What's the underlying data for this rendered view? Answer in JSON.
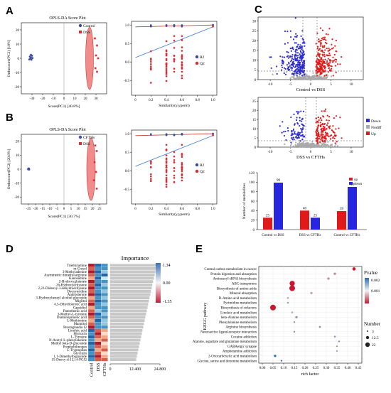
{
  "panel_labels": {
    "a": "A",
    "b": "B",
    "c": "C",
    "d": "D",
    "e": "E"
  },
  "chart_data": [
    {
      "id": "A1",
      "type": "scatter",
      "title": "OPLS-DA Score Plot",
      "xlabel": "Score(PC1) [40.8%]",
      "ylabel": "Orthoscore(PC2) [10%]",
      "xticks": [
        "-30",
        "-20",
        "-10",
        "0",
        "10",
        "20",
        "30"
      ],
      "yticks": [
        "-20",
        "-10",
        "0",
        "10",
        "20"
      ],
      "legend": [
        "Control",
        "DSS"
      ],
      "colors": [
        "#3b4ba0",
        "#e02b33"
      ],
      "series": [
        {
          "name": "Control",
          "points": [
            [
              -32,
              1.2
            ],
            [
              -31,
              0.5
            ],
            [
              -30,
              1.8
            ],
            [
              -31.5,
              -0.3
            ],
            [
              -30.5,
              -1
            ],
            [
              -29.5,
              0.2
            ],
            [
              -32.5,
              -0.8
            ],
            [
              -31,
              2.4
            ]
          ]
        },
        {
          "name": "DSS",
          "points": [
            [
              29,
              14
            ],
            [
              31,
              9
            ],
            [
              30,
              2
            ],
            [
              32,
              0
            ],
            [
              29.5,
              -7
            ],
            [
              31,
              -9.5
            ]
          ]
        }
      ]
    },
    {
      "id": "A2",
      "type": "scatter",
      "xlabel": "Similarity(y,yperm)",
      "yticks": [
        "-0.5",
        "0.0",
        "0.5",
        "1.0"
      ],
      "xticks": [
        "0",
        "0.2",
        "0.4",
        "0.6",
        "0.8",
        "1.0"
      ],
      "legend": [
        "R2",
        "Q2"
      ]
    },
    {
      "id": "B1",
      "type": "scatter",
      "title": "OPLS-DA Score Plot",
      "xlabel": "Score(PC1) [30.7%]",
      "ylabel": "Orthoscore(PC2) [20.8%]",
      "xticks": [
        "-25",
        "-20",
        "-15",
        "-10",
        "-5",
        "0",
        "5",
        "10",
        "15",
        "20",
        "25"
      ],
      "yticks": [
        "-20",
        "-10",
        "0",
        "10",
        "20"
      ],
      "legend": [
        "CFTHs",
        "DSS"
      ],
      "colors": [
        "#3b4ba0",
        "#e02b33"
      ],
      "series": [
        {
          "name": "CFTHs",
          "points": [
            [
              -25,
              0.5
            ],
            [
              -24.5,
              -0.3
            ],
            [
              -24.8,
              0.2
            ],
            [
              -25.2,
              -0.1
            ],
            [
              -24.6,
              0.4
            ]
          ]
        },
        {
          "name": "DSS",
          "points": [
            [
              22,
              17
            ],
            [
              23,
              13
            ],
            [
              21.5,
              5
            ],
            [
              22.5,
              -2
            ],
            [
              21,
              -8
            ],
            [
              23,
              -14
            ]
          ]
        }
      ]
    },
    {
      "id": "B2",
      "type": "scatter",
      "xlabel": "Similarity(y,yperm)",
      "yticks": [
        "-0.5",
        "0.0",
        "0.5",
        "1.0"
      ],
      "xticks": [
        "0",
        "0.2",
        "0.4",
        "0.6",
        "0.8",
        "1.0"
      ],
      "legend": [
        "R2",
        "Q2"
      ]
    },
    {
      "id": "C1",
      "type": "scatter",
      "xlabel": "Control vs DSS",
      "xticks": [
        "-10",
        "-5",
        "0",
        "5",
        "10"
      ],
      "yticks": [
        "0",
        "5",
        "10",
        "15",
        "20",
        "25",
        "30"
      ]
    },
    {
      "id": "C2",
      "type": "scatter",
      "xlabel": "DSS vs CFTHs",
      "xticks": [
        "-10",
        "-5",
        "0",
        "5",
        "10"
      ],
      "yticks": [
        "0",
        "5",
        "10",
        "15",
        "20",
        "25"
      ],
      "legend": [
        "Down",
        "Nodiff",
        "Up"
      ],
      "colors": [
        "#2c2cd0",
        "#aaaaaa",
        "#e01a1a"
      ]
    },
    {
      "id": "C3",
      "type": "bar",
      "ylabel": "Number of metabolites",
      "categories": [
        "Control vs DSS",
        "DSS vs CFTHs",
        "Control vs CFTHs"
      ],
      "yticks": [
        "0",
        "20",
        "40",
        "60",
        "80",
        "100",
        "120"
      ],
      "ylim": [
        0,
        120
      ],
      "legend": [
        "up",
        "down"
      ],
      "colors": [
        "#e01a1a",
        "#2626e0"
      ],
      "series": [
        {
          "name": "up",
          "values": [
            25,
            40,
            39
          ]
        },
        {
          "name": "down",
          "values": [
            99,
            25,
            90
          ]
        }
      ],
      "value_labels": {
        "up": [
          "25",
          "40",
          "39"
        ],
        "down": [
          "99",
          "25",
          "90"
        ]
      }
    },
    {
      "id": "D",
      "type": "heatmap",
      "title": "Importance",
      "rows": [
        "Triethylamine",
        "m-Cresol",
        "3-Methyladenine",
        "Asymmetric dimethylarginine",
        "Kanosamine",
        "2-Hydroxyglutarate",
        "26-Hydroxyecdysone",
        "2,22-Dideoxy-3-dehydroecdysone",
        "Deoxyuridine",
        "Androsterone",
        "3-Hydroxybenzyl alcohol glucoside",
        "Miglitol",
        "4,5-Dihydroorotic acid",
        "Capsidiol",
        "Pantothenic acid",
        "3-Methyl-L-tyrosine",
        "Diaminopimelic acid",
        "L-Methionine",
        "Mannitol",
        "Prostaglandin I2",
        "Linoleic acid",
        "Myriocin",
        "L-Tyrosine",
        "N-Acetyl-L-phenylalanine",
        "Methyl beta-D-glucoside",
        "Porphobilinogen",
        "L-Tryptophan",
        "Glycitein",
        "1,1-Dimethylbiguanide",
        "15-Deoxy-d-12,14-PGJ2"
      ],
      "columns": [
        "Control",
        "DSS",
        "CFTHs"
      ],
      "importance_ticks": [
        "0",
        "12.400",
        "24.800"
      ],
      "colorbar_ticks": [
        "1.34",
        "0.00",
        "-1.35"
      ],
      "importance": [
        23.5,
        22.8,
        22.4,
        22.1,
        21.7,
        21.3,
        20.9,
        20.6,
        20.2,
        19.9,
        19.5,
        19.2,
        18.8,
        18.5,
        18.1,
        17.8,
        17.4,
        17.1,
        16.7,
        16.4,
        16.0,
        15.7,
        15.3,
        15.0,
        14.6,
        14.3,
        13.9,
        13.6,
        13.2,
        12.9
      ]
    },
    {
      "id": "E",
      "type": "scatter",
      "xlabel": "rich factor",
      "ylabel": "KEGG pathway",
      "xticks": [
        "0.00",
        "0.05",
        "0.10",
        "0.15",
        "0.20",
        "0.25",
        "0.30",
        "0.35",
        "0.40",
        "0.45"
      ],
      "pathways": [
        "Central carbon metabolism in cancer",
        "Protein digestion and absorption",
        "Aminoacyl-tRNA biosynthesis",
        "ABC transporters",
        "Biosynthesis of amino acids",
        "Mineral absorption",
        "D-Amino acid metabolism",
        "Pyrimidine metabolism",
        "Biosynthesis of cofactors",
        "Linoleic acid metabolism",
        "beta-Alanine metabolism",
        "Phenylalanine metabolism",
        "Arginine biosynthesis",
        "Neuroactive ligand-receptor interaction",
        "Cocaine addiction",
        "Alanine, aspartate and glutamate metabolism",
        "GABAergic synapse",
        "Amphetamine addiction",
        "2-Oxocarboxylic acid metabolism",
        "Glycine, serine and threonine metabolism"
      ],
      "rich_factor": [
        0.43,
        0.34,
        0.31,
        0.14,
        0.14,
        0.23,
        0.12,
        0.12,
        0.05,
        0.14,
        0.16,
        0.15,
        0.27,
        0.15,
        0.34,
        0.36,
        0.35,
        0.35,
        0.06,
        0.09
      ],
      "number": [
        12,
        8,
        8,
        20,
        22,
        8,
        6,
        6,
        22,
        6,
        8,
        5,
        6,
        5,
        5,
        5,
        4,
        4,
        8,
        5
      ],
      "pvalue": [
        0.0001,
        0.0003,
        0.0003,
        0.0001,
        0.0001,
        0.0004,
        0.0004,
        0.0006,
        0.0001,
        0.0005,
        0.0008,
        0.0008,
        0.0009,
        0.0009,
        0.001,
        0.001,
        0.001,
        0.001,
        0.002,
        0.002
      ],
      "legend_pvalue_title": "Pvalue",
      "legend_pvalue_ticks": [
        "0.002",
        "0.001"
      ],
      "legend_number_title": "Number",
      "legend_number_ticks": [
        "3",
        "12.5",
        "22"
      ]
    }
  ]
}
